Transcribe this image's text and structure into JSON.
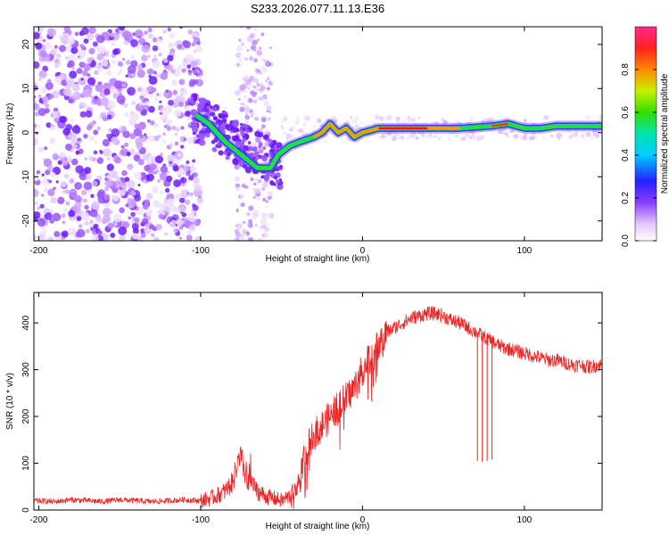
{
  "figure_title": "S233.2026.077.11.13.E36",
  "chart_data": [
    {
      "type": "heatmap",
      "title": "S233.2026.077.11.13.E36",
      "xlabel": "Height of straight line (km)",
      "ylabel": "Frequency (Hz)",
      "xlim": [
        -203,
        148
      ],
      "ylim": [
        -24.5,
        24
      ],
      "xticks": [
        -200,
        -100,
        0,
        100
      ],
      "yticks": [
        -20,
        -10,
        0,
        10,
        20
      ],
      "colorbar": {
        "label": "Normalized spectral amplitude",
        "range": [
          0,
          1
        ],
        "ticks": [
          0.0,
          0.2,
          0.4,
          0.6,
          0.8
        ],
        "tick_labels": [
          "0.0",
          "0.2",
          "0.4",
          "0.6",
          "0.8"
        ]
      },
      "ridge": {
        "x": [
          -103,
          -95,
          -85,
          -75,
          -65,
          -57,
          -52,
          -45,
          -38,
          -30,
          -25,
          -20,
          -15,
          -10,
          -5,
          0,
          10,
          20,
          40,
          60,
          80,
          90,
          100,
          110,
          120,
          148
        ],
        "y": [
          4,
          2,
          -2,
          -5,
          -8,
          -8,
          -5,
          -3,
          -2,
          -1,
          0,
          2,
          0,
          1,
          -1,
          0,
          1,
          1,
          1,
          1,
          1.5,
          2,
          1,
          1,
          1.5,
          1.5
        ]
      }
    },
    {
      "type": "line",
      "xlabel": "Height of straight line (km)",
      "ylabel": "SNR (10 * v/v)",
      "xlim": [
        -203,
        148
      ],
      "ylim": [
        0,
        465
      ],
      "xticks": [
        -200,
        -100,
        0,
        100
      ],
      "yticks": [
        0,
        100,
        200,
        300,
        400
      ],
      "series": [
        {
          "name": "SNR",
          "color": "#ee2222",
          "x": [
            -203,
            -190,
            -180,
            -170,
            -160,
            -150,
            -140,
            -130,
            -120,
            -110,
            -100,
            -95,
            -90,
            -85,
            -80,
            -78,
            -75,
            -72,
            -70,
            -65,
            -60,
            -55,
            -50,
            -45,
            -40,
            -38,
            -35,
            -32,
            -30,
            -25,
            -20,
            -15,
            -10,
            -5,
            0,
            5,
            10,
            15,
            20,
            25,
            30,
            35,
            40,
            45,
            50,
            55,
            60,
            65,
            70,
            75,
            80,
            85,
            90,
            95,
            100,
            105,
            110,
            115,
            120,
            125,
            130,
            135,
            140,
            145,
            148
          ],
          "y": [
            20,
            18,
            22,
            20,
            18,
            22,
            20,
            18,
            20,
            22,
            20,
            24,
            30,
            40,
            60,
            90,
            110,
            70,
            60,
            40,
            30,
            25,
            20,
            30,
            50,
            80,
            120,
            150,
            160,
            180,
            200,
            220,
            240,
            260,
            300,
            330,
            350,
            380,
            390,
            400,
            410,
            415,
            420,
            420,
            415,
            405,
            400,
            390,
            380,
            370,
            360,
            350,
            345,
            340,
            335,
            330,
            325,
            320,
            320,
            315,
            310,
            310,
            305,
            310,
            310
          ]
        }
      ],
      "dips": [
        {
          "x": 71,
          "y": 105
        },
        {
          "x": 74,
          "y": 103
        },
        {
          "x": 77,
          "y": 105
        },
        {
          "x": 80,
          "y": 108
        }
      ]
    }
  ]
}
